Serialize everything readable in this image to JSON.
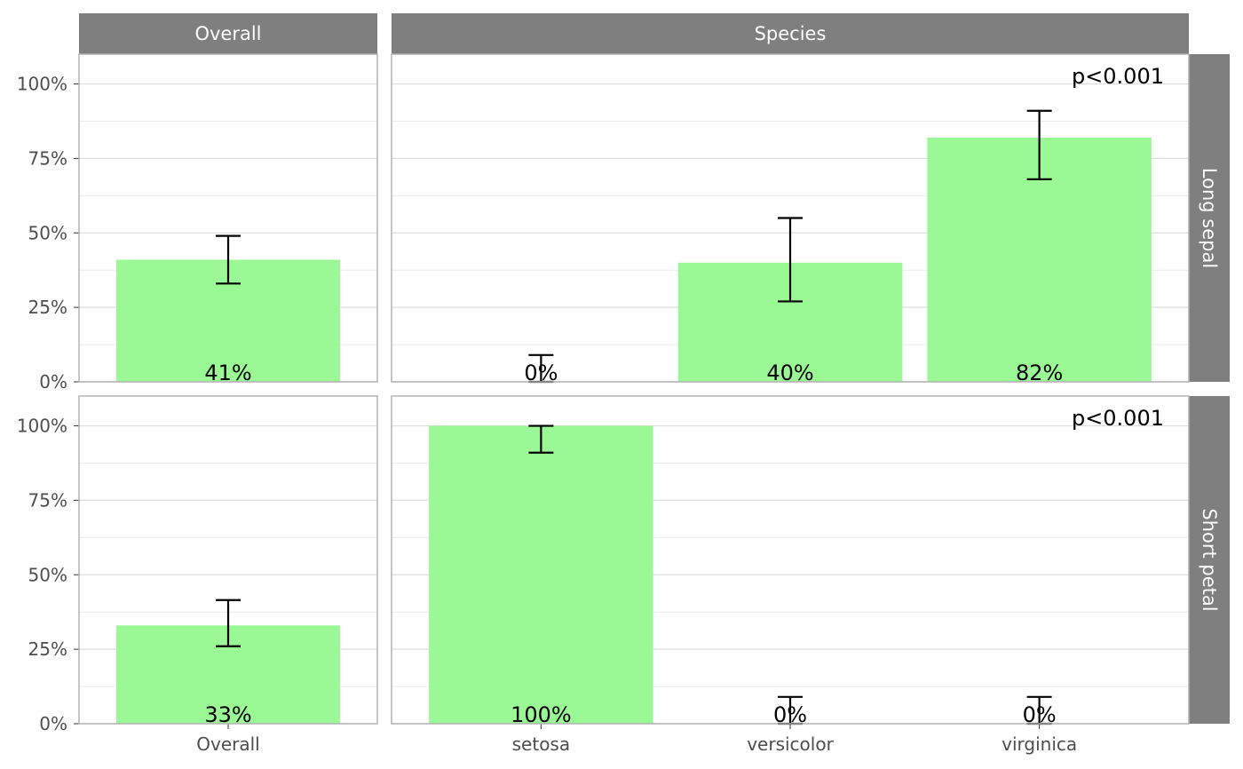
{
  "chart_data": {
    "type": "bar",
    "colors": {
      "bar": "#9AF994",
      "strip": "#7f7f7f",
      "strip_text": "#ffffff",
      "panel_border": "#b3b3b3",
      "grid": "#dedede",
      "grid_minor": "#ebebeb",
      "errorbar": "#000000"
    },
    "ylim": [
      0,
      1.1
    ],
    "y_ticks": [
      {
        "value": 0,
        "label": "0%"
      },
      {
        "value": 0.25,
        "label": "25%"
      },
      {
        "value": 0.5,
        "label": "50%"
      },
      {
        "value": 0.75,
        "label": "75%"
      },
      {
        "value": 1.0,
        "label": "100%"
      }
    ],
    "column_strips": [
      "Overall",
      "Species"
    ],
    "row_strips": [
      "Long sepal",
      "Short petal"
    ],
    "columns": [
      {
        "strip": "Overall",
        "categories": [
          "Overall"
        ]
      },
      {
        "strip": "Species",
        "categories": [
          "setosa",
          "versicolor",
          "virginica"
        ]
      }
    ],
    "panels": [
      {
        "row": "Long sepal",
        "column": "Overall",
        "p_label": "",
        "bars": [
          {
            "category": "Overall",
            "value": 0.41,
            "ci": [
              0.33,
              0.49
            ],
            "label": "41%"
          }
        ]
      },
      {
        "row": "Long sepal",
        "column": "Species",
        "p_label": "p<0.001",
        "bars": [
          {
            "category": "setosa",
            "value": 0.0,
            "ci": [
              0.0,
              0.09
            ],
            "label": "0%"
          },
          {
            "category": "versicolor",
            "value": 0.4,
            "ci": [
              0.27,
              0.55
            ],
            "label": "40%"
          },
          {
            "category": "virginica",
            "value": 0.82,
            "ci": [
              0.68,
              0.91
            ],
            "label": "82%"
          }
        ]
      },
      {
        "row": "Short petal",
        "column": "Overall",
        "p_label": "",
        "bars": [
          {
            "category": "Overall",
            "value": 0.33,
            "ci": [
              0.26,
              0.415
            ],
            "label": "33%"
          }
        ]
      },
      {
        "row": "Short petal",
        "column": "Species",
        "p_label": "p<0.001",
        "bars": [
          {
            "category": "setosa",
            "value": 1.0,
            "ci": [
              0.91,
              1.0
            ],
            "label": "100%"
          },
          {
            "category": "versicolor",
            "value": 0.0,
            "ci": [
              0.0,
              0.09
            ],
            "label": "0%"
          },
          {
            "category": "virginica",
            "value": 0.0,
            "ci": [
              0.0,
              0.09
            ],
            "label": "0%"
          }
        ]
      }
    ]
  }
}
